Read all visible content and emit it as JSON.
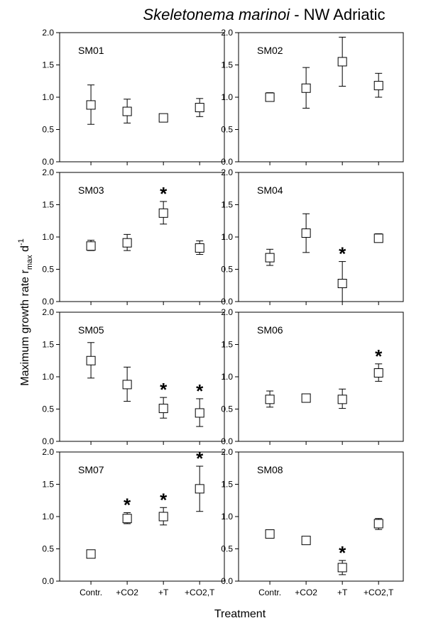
{
  "figure": {
    "title_italic": "Skeletonema marinoi",
    "title_rest": " - NW Adriatic",
    "ylabel_main": "Maximum growth rate r",
    "ylabel_sub": "max",
    "ylabel_unit": " d",
    "ylabel_sup": "-1",
    "xlabel": "Treatment"
  },
  "chart_data": [
    {
      "type": "scatter",
      "title": "SM01",
      "ylim": [
        0,
        2
      ],
      "yticks": [
        "0.0",
        "0.5",
        "1.0",
        "1.5",
        "2.0"
      ],
      "categories": [
        "Contr.",
        "+CO2",
        "+T",
        "+CO2,T"
      ],
      "values": [
        0.88,
        0.78,
        0.68,
        0.84
      ],
      "err_low": [
        0.58,
        0.6,
        0.63,
        0.7
      ],
      "err_high": [
        1.19,
        0.97,
        0.74,
        0.98
      ],
      "significant": [
        false,
        false,
        false,
        false
      ]
    },
    {
      "type": "scatter",
      "title": "SM02",
      "ylim": [
        0,
        2
      ],
      "yticks": [
        "0.0",
        "0.5",
        "1.0",
        "1.5",
        "2.0"
      ],
      "categories": [
        "Contr.",
        "+CO2",
        "+T",
        "+CO2,T"
      ],
      "values": [
        1.0,
        1.14,
        1.55,
        1.18
      ],
      "err_low": [
        0.94,
        0.83,
        1.17,
        1.0
      ],
      "err_high": [
        1.07,
        1.46,
        1.93,
        1.37
      ],
      "significant": [
        false,
        false,
        false,
        false
      ]
    },
    {
      "type": "scatter",
      "title": "SM03",
      "ylim": [
        0,
        2
      ],
      "yticks": [
        "0.0",
        "0.5",
        "1.0",
        "1.5",
        "2.0"
      ],
      "categories": [
        "Contr.",
        "+CO2",
        "+T",
        "+CO2,T"
      ],
      "values": [
        0.86,
        0.91,
        1.37,
        0.83
      ],
      "err_low": [
        0.79,
        0.79,
        1.2,
        0.73
      ],
      "err_high": [
        0.95,
        1.04,
        1.55,
        0.94
      ],
      "significant": [
        false,
        false,
        true,
        false
      ]
    },
    {
      "type": "scatter",
      "title": "SM04",
      "ylim": [
        0,
        2
      ],
      "yticks": [
        "0.0",
        "0.5",
        "1.0",
        "1.5",
        "2.0"
      ],
      "categories": [
        "Contr.",
        "+CO2",
        "+T",
        "+CO2,T"
      ],
      "values": [
        0.68,
        1.06,
        0.28,
        0.98
      ],
      "err_low": [
        0.56,
        0.76,
        0.0,
        0.92
      ],
      "err_high": [
        0.81,
        1.36,
        0.62,
        1.05
      ],
      "significant": [
        false,
        false,
        true,
        false
      ]
    },
    {
      "type": "scatter",
      "title": "SM05",
      "ylim": [
        0,
        2
      ],
      "yticks": [
        "0.0",
        "0.5",
        "1.0",
        "1.5",
        "2.0"
      ],
      "categories": [
        "Contr.",
        "+CO2",
        "+T",
        "+CO2,T"
      ],
      "values": [
        1.25,
        0.88,
        0.51,
        0.44
      ],
      "err_low": [
        0.98,
        0.62,
        0.36,
        0.23
      ],
      "err_high": [
        1.53,
        1.15,
        0.68,
        0.66
      ],
      "significant": [
        false,
        false,
        true,
        true
      ]
    },
    {
      "type": "scatter",
      "title": "SM06",
      "ylim": [
        0,
        2
      ],
      "yticks": [
        "0.0",
        "0.5",
        "1.0",
        "1.5",
        "2.0"
      ],
      "categories": [
        "Contr.",
        "+CO2",
        "+T",
        "+CO2,T"
      ],
      "values": [
        0.65,
        0.67,
        0.65,
        1.06
      ],
      "err_low": [
        0.53,
        0.63,
        0.51,
        0.93
      ],
      "err_high": [
        0.78,
        0.71,
        0.81,
        1.2
      ],
      "significant": [
        false,
        false,
        false,
        true
      ]
    },
    {
      "type": "scatter",
      "title": "SM07",
      "ylim": [
        0,
        2
      ],
      "yticks": [
        "0.0",
        "0.5",
        "1.0",
        "1.5",
        "2.0"
      ],
      "categories": [
        "Contr.",
        "+CO2",
        "+T",
        "+CO2,T"
      ],
      "values": [
        0.42,
        0.97,
        1.0,
        1.43
      ],
      "err_low": [
        0.37,
        0.89,
        0.87,
        1.08
      ],
      "err_high": [
        0.47,
        1.06,
        1.14,
        1.78
      ],
      "significant": [
        false,
        true,
        true,
        true
      ]
    },
    {
      "type": "scatter",
      "title": "SM08",
      "ylim": [
        0,
        2
      ],
      "yticks": [
        "0.0",
        "0.5",
        "1.0",
        "1.5",
        "2.0"
      ],
      "categories": [
        "Contr.",
        "+CO2",
        "+T",
        "+CO2,T"
      ],
      "values": [
        0.73,
        0.63,
        0.21,
        0.89
      ],
      "err_low": [
        0.73,
        0.63,
        0.1,
        0.8
      ],
      "err_high": [
        0.73,
        0.63,
        0.32,
        0.97
      ],
      "significant": [
        false,
        false,
        true,
        false
      ]
    }
  ]
}
